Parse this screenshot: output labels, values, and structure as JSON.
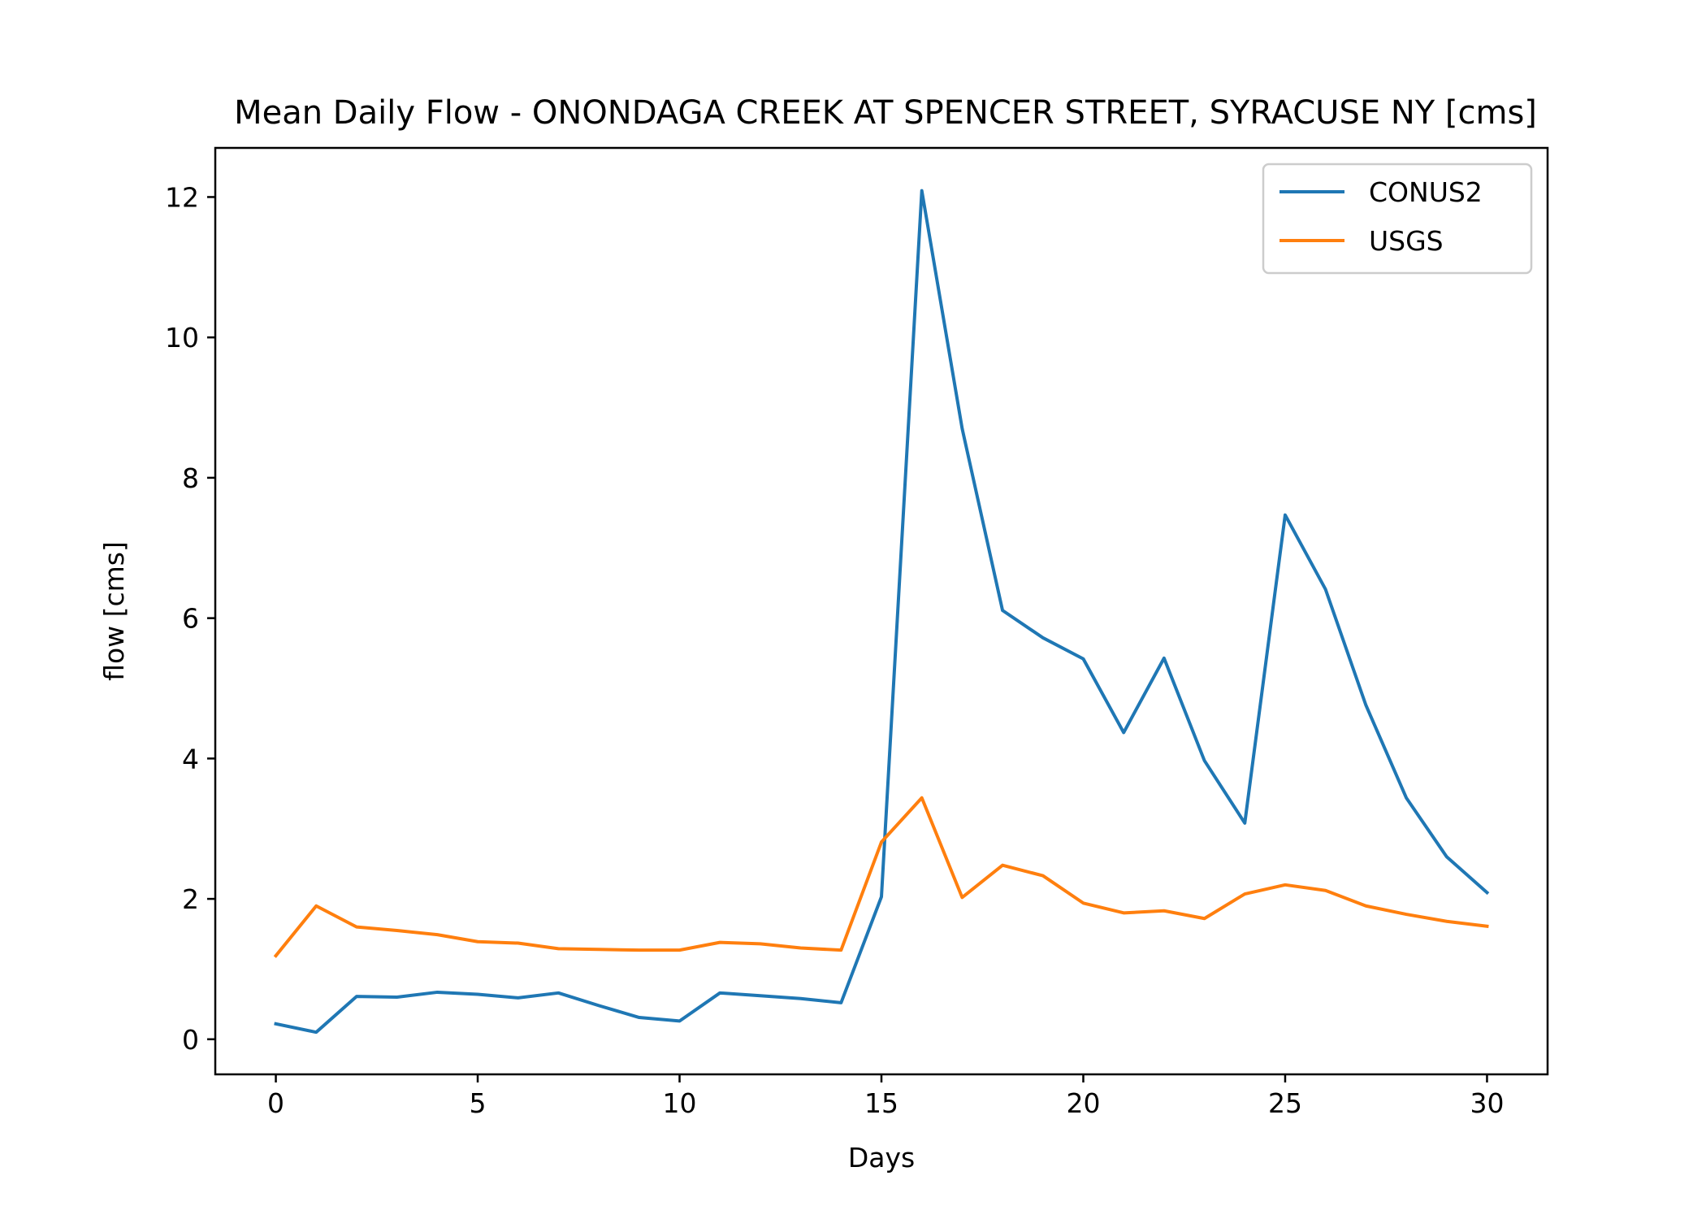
{
  "chart_data": {
    "type": "line",
    "title": "Mean Daily Flow - ONONDAGA CREEK AT SPENCER STREET, SYRACUSE NY [cms]",
    "xlabel": "Days",
    "ylabel": "flow [cms]",
    "xlim": [
      -1.5,
      31.5
    ],
    "ylim": [
      -0.5,
      12.7
    ],
    "xticks": [
      0,
      5,
      10,
      15,
      20,
      25,
      30
    ],
    "yticks": [
      0,
      2,
      4,
      6,
      8,
      10,
      12
    ],
    "grid": false,
    "legend_position": "top-right",
    "x": [
      0,
      1,
      2,
      3,
      4,
      5,
      6,
      7,
      8,
      9,
      10,
      11,
      12,
      13,
      14,
      15,
      16,
      17,
      18,
      19,
      20,
      21,
      22,
      23,
      24,
      25,
      26,
      27,
      28,
      29,
      30
    ],
    "series": [
      {
        "name": "CONUS2",
        "color": "#1f77b4",
        "values": [
          0.22,
          0.1,
          0.61,
          0.6,
          0.67,
          0.64,
          0.59,
          0.66,
          0.48,
          0.31,
          0.26,
          0.66,
          0.62,
          0.58,
          0.52,
          2.03,
          12.09,
          8.7,
          6.11,
          5.72,
          5.42,
          4.37,
          5.43,
          3.97,
          3.08,
          7.47,
          6.41,
          4.76,
          3.44,
          2.6,
          2.09
        ]
      },
      {
        "name": "USGS",
        "color": "#ff7f0e",
        "values": [
          1.19,
          1.9,
          1.6,
          1.55,
          1.49,
          1.39,
          1.37,
          1.29,
          1.28,
          1.27,
          1.27,
          1.38,
          1.36,
          1.3,
          1.27,
          2.81,
          3.44,
          2.02,
          2.48,
          2.33,
          1.94,
          1.8,
          1.83,
          1.72,
          2.07,
          2.2,
          2.12,
          1.9,
          1.78,
          1.68,
          1.61
        ]
      }
    ]
  }
}
